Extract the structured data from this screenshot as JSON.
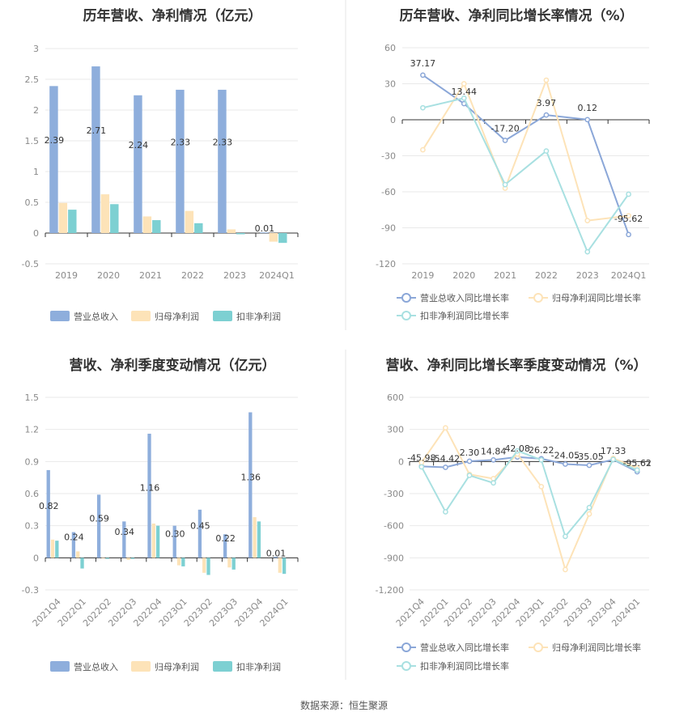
{
  "source": "数据来源：恒生聚源",
  "colors": {
    "revenue": "#8eaedc",
    "net_profit": "#fde3b8",
    "deducted_profit": "#7dd0d2",
    "divider": "#e6e6e6"
  },
  "chart_data": [
    {
      "type": "bar",
      "title": "历年营收、净利情况（亿元）",
      "categories": [
        "2019",
        "2020",
        "2021",
        "2022",
        "2023",
        "2024Q1"
      ],
      "ylim": [
        -0.5,
        3
      ],
      "yticks": [
        "3",
        "2.5",
        "2",
        "1.5",
        "1",
        "0.5",
        "0",
        "-0.5"
      ],
      "series": [
        {
          "name": "营业总收入",
          "values": [
            2.39,
            2.71,
            2.24,
            2.33,
            2.33,
            0.01
          ],
          "labels": [
            "2.39",
            "2.71",
            "2.24",
            "2.33",
            "2.33",
            "0.01"
          ]
        },
        {
          "name": "归母净利润",
          "values": [
            0.49,
            0.63,
            0.27,
            0.36,
            0.06,
            -0.14
          ]
        },
        {
          "name": "扣非净利润",
          "values": [
            0.38,
            0.47,
            0.21,
            0.16,
            -0.02,
            -0.16
          ]
        }
      ],
      "grid": true,
      "legend": "bottom"
    },
    {
      "type": "line",
      "title": "历年营收、净利同比增长率情况（%）",
      "categories": [
        "2019",
        "2020",
        "2021",
        "2022",
        "2023",
        "2024Q1"
      ],
      "ylim": [
        -120,
        60
      ],
      "yticks": [
        "60",
        "30",
        "0",
        "-30",
        "-60",
        "-90",
        "-120"
      ],
      "series": [
        {
          "name": "营业总收入同比增长率",
          "values": [
            37.17,
            13.44,
            -17.2,
            3.97,
            0.12,
            -95.62
          ],
          "labels": [
            "37.17",
            "13.44",
            "-17.20",
            "3.97",
            "0.12",
            "-95.62"
          ]
        },
        {
          "name": "归母净利润同比增长率",
          "values": [
            -25,
            30,
            -57,
            33,
            -84,
            -80
          ]
        },
        {
          "name": "扣非净利润同比增长率",
          "values": [
            10,
            18,
            -54,
            -26,
            -110,
            -62
          ]
        }
      ],
      "grid": true,
      "legend": "bottom"
    },
    {
      "type": "bar",
      "title": "营收、净利季度变动情况（亿元）",
      "categories": [
        "2021Q4",
        "2022Q1",
        "2022Q2",
        "2022Q3",
        "2022Q4",
        "2023Q1",
        "2023Q2",
        "2023Q3",
        "2023Q4",
        "2024Q1"
      ],
      "ylim": [
        -0.3,
        1.5
      ],
      "yticks": [
        "1.5",
        "1.2",
        "0.9",
        "0.6",
        "0.3",
        "0",
        "-0.3"
      ],
      "series": [
        {
          "name": "营业总收入",
          "values": [
            0.82,
            0.24,
            0.59,
            0.34,
            1.16,
            0.3,
            0.45,
            0.22,
            1.36,
            0.01
          ],
          "labels": [
            "0.82",
            "0.24",
            "0.59",
            "0.34",
            "1.16",
            "0.30",
            "0.45",
            "0.22",
            "1.36",
            "0.01"
          ]
        },
        {
          "name": "归母净利润",
          "values": [
            0.17,
            0.06,
            0.0,
            -0.02,
            0.32,
            -0.07,
            -0.14,
            -0.09,
            0.38,
            -0.14
          ]
        },
        {
          "name": "扣非净利润",
          "values": [
            0.16,
            -0.1,
            -0.01,
            -0.01,
            0.3,
            -0.08,
            -0.16,
            -0.11,
            0.34,
            -0.15
          ]
        }
      ],
      "grid": true,
      "legend": "bottom"
    },
    {
      "type": "line",
      "title": "营收、净利同比增长率季度变动情况（%）",
      "categories": [
        "2021Q4",
        "2022Q1",
        "2022Q2",
        "2022Q3",
        "2022Q4",
        "2023Q1",
        "2023Q2",
        "2023Q3",
        "2023Q4",
        "2024Q1"
      ],
      "ylim": [
        -1200,
        600
      ],
      "yticks": [
        "600",
        "300",
        "0",
        "-300",
        "-600",
        "-900",
        "-1,200"
      ],
      "series": [
        {
          "name": "营业总收入同比增长率",
          "values": [
            -45.98,
            -54.42,
            2.3,
            14.84,
            42.08,
            26.22,
            -24.05,
            -35.05,
            17.33,
            -95.62
          ],
          "labels": [
            "-45.98",
            "-54.42",
            "2.30",
            "14.84",
            "42.08",
            "26.22",
            "-24.05",
            "-35.05",
            "17.33",
            "-95.62"
          ]
        },
        {
          "name": "归母净利润同比增长率",
          "values": [
            -10,
            315,
            -120,
            -160,
            70,
            -235,
            -1010,
            -490,
            30,
            -60
          ]
        },
        {
          "name": "扣非净利润同比增长率",
          "values": [
            -50,
            -470,
            -130,
            -200,
            100,
            15,
            -700,
            -430,
            20,
            -80
          ]
        }
      ],
      "grid": true,
      "legend": "bottom"
    }
  ]
}
